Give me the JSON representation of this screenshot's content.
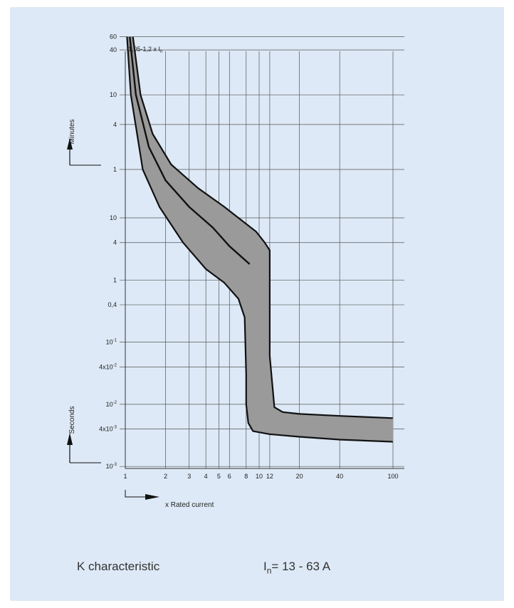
{
  "chart_data": {
    "type": "line",
    "title": "K characteristic",
    "subtitle": {
      "symbol": "I",
      "subscript": "n",
      "text": "= 13 - 63 A"
    },
    "xlabel": "x Rated current",
    "x_scale": "log",
    "xlim": [
      1,
      100
    ],
    "x_ticks": [
      "1",
      "2",
      "3",
      "4",
      "5",
      "6",
      "8",
      "10",
      "12",
      "20",
      "40",
      "100"
    ],
    "y_ticks_minutes": [
      {
        "label": "60"
      },
      {
        "label": "40"
      },
      {
        "label": "10"
      },
      {
        "label": "4"
      },
      {
        "label": "1"
      }
    ],
    "y_ticks_seconds": [
      {
        "label": "10"
      },
      {
        "label": "4"
      },
      {
        "label": "1"
      },
      {
        "label": "0,4"
      },
      {
        "base": "10",
        "exp": "-1"
      },
      {
        "base": "4x10",
        "exp": "-2"
      },
      {
        "base": "10",
        "exp": "-2"
      },
      {
        "base": "4x10",
        "exp": "-3"
      },
      {
        "base": "10",
        "exp": "-3"
      }
    ],
    "ylabel_minutes": "Minutes",
    "ylabel_seconds": "Seconds",
    "annotation": {
      "text": "1,05-1,2 x I",
      "subscript": "n"
    },
    "grid": true,
    "band_color": "#9a9a9a",
    "series": [
      {
        "name": "upper limit",
        "role": "band-upper",
        "points": [
          [
            1.14,
            3600
          ],
          [
            1.3,
            600
          ],
          [
            1.6,
            180
          ],
          [
            2.2,
            70
          ],
          [
            3.5,
            30
          ],
          [
            5.5,
            15
          ],
          [
            8,
            8
          ],
          [
            9.5,
            6
          ],
          [
            11,
            4
          ],
          [
            12,
            3
          ],
          [
            12,
            0.06
          ],
          [
            13,
            0.009
          ],
          [
            15,
            0.0075
          ],
          [
            20,
            0.007
          ],
          [
            40,
            0.0065
          ],
          [
            100,
            0.006
          ]
        ]
      },
      {
        "name": "mean",
        "role": "center",
        "points": [
          [
            1.08,
            3600
          ],
          [
            1.2,
            600
          ],
          [
            1.5,
            120
          ],
          [
            2,
            40
          ],
          [
            3,
            15
          ],
          [
            4.5,
            7
          ],
          [
            6,
            3.5
          ],
          [
            8.5,
            1.8
          ]
        ]
      },
      {
        "name": "lower limit",
        "role": "band-lower",
        "points": [
          [
            1.03,
            3600
          ],
          [
            1.1,
            600
          ],
          [
            1.35,
            60
          ],
          [
            1.8,
            15
          ],
          [
            2.7,
            4
          ],
          [
            4,
            1.5
          ],
          [
            5.5,
            0.9
          ],
          [
            7,
            0.5
          ],
          [
            7.8,
            0.25
          ],
          [
            8,
            0.03
          ],
          [
            8,
            0.01
          ],
          [
            8.3,
            0.005
          ],
          [
            9,
            0.0037
          ],
          [
            12,
            0.0033
          ],
          [
            20,
            0.003
          ],
          [
            40,
            0.0027
          ],
          [
            100,
            0.0025
          ]
        ]
      }
    ]
  }
}
